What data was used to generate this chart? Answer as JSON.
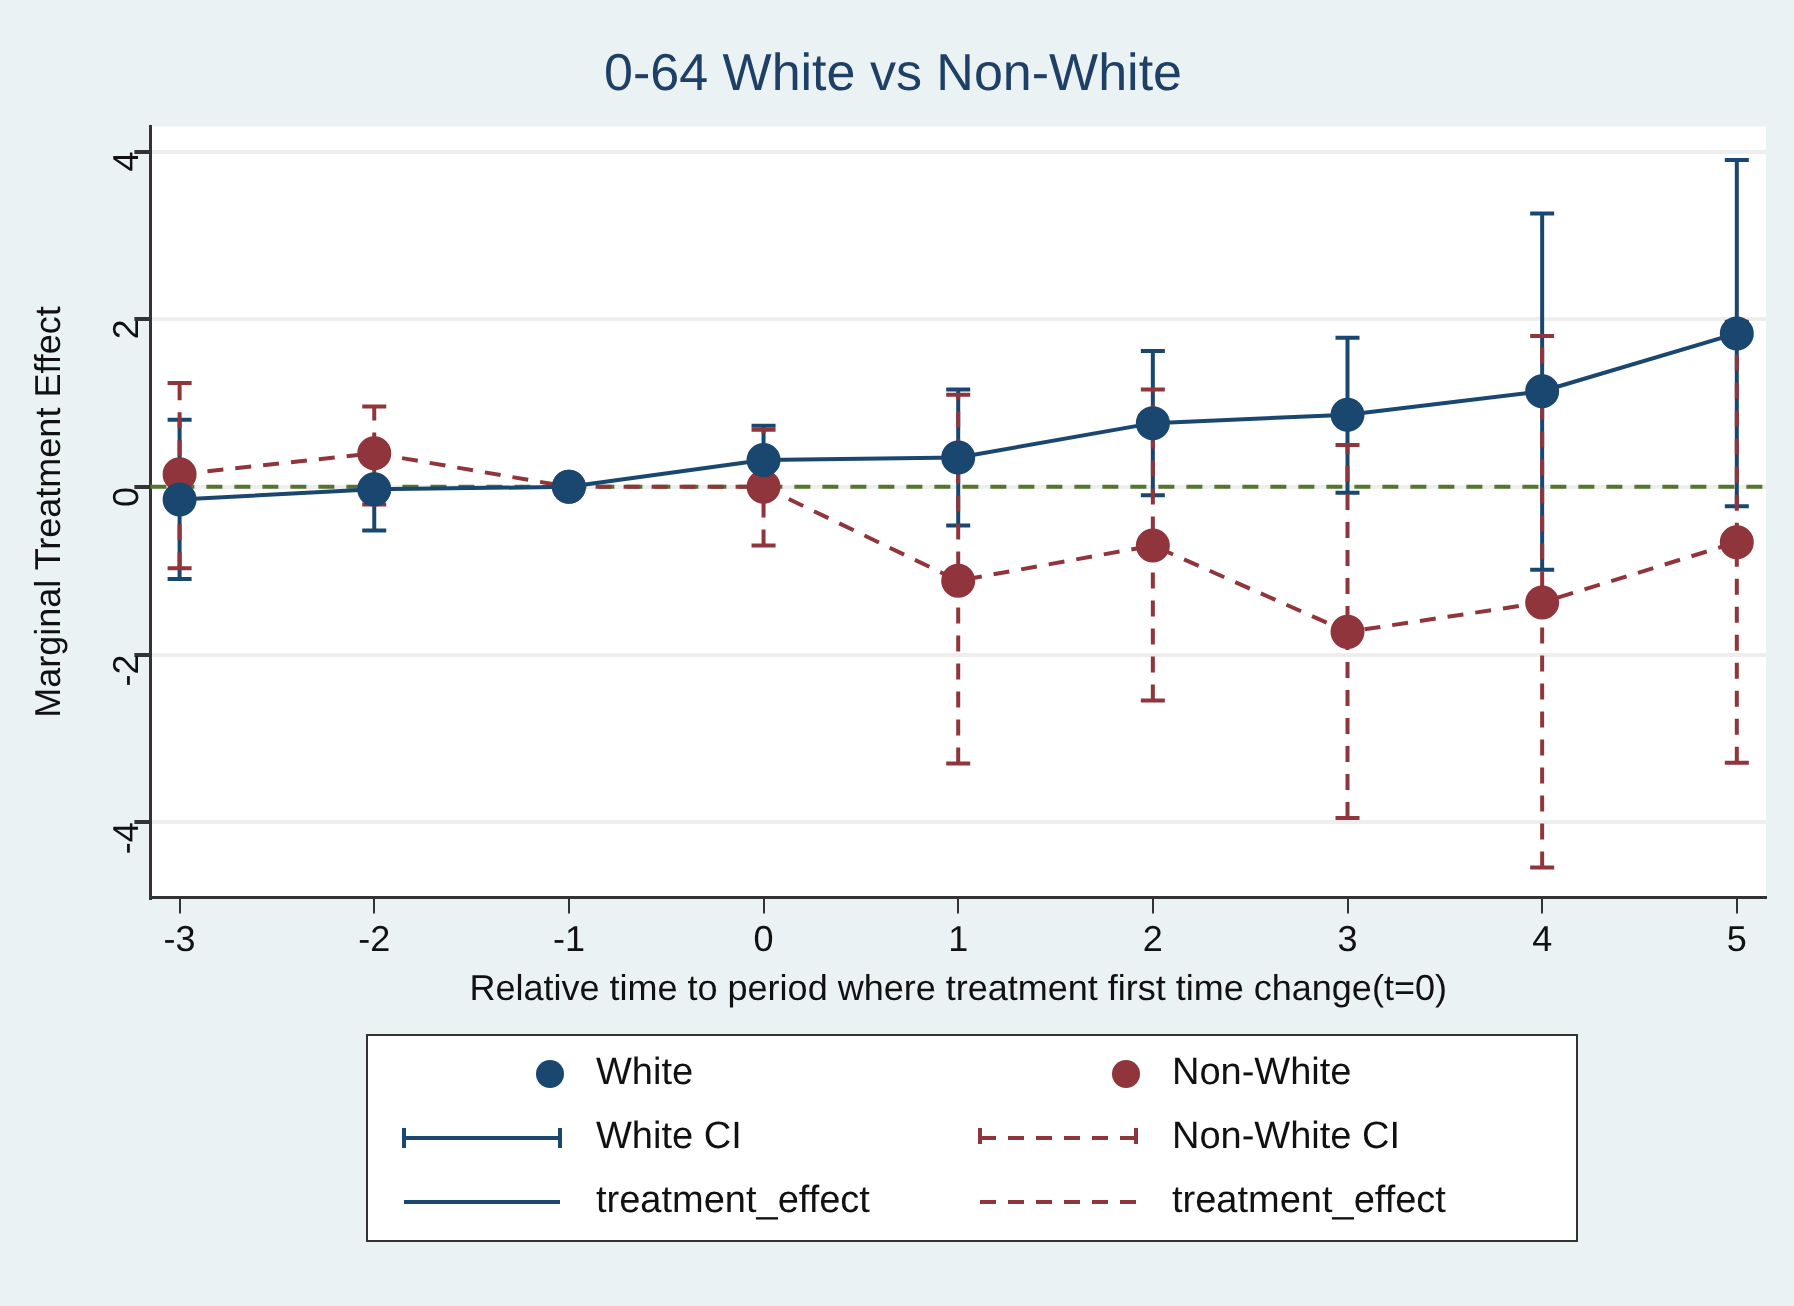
{
  "chart_data": {
    "type": "line",
    "title": "0-64 White vs Non-White",
    "xlabel": "Relative time to period where treatment first time change(t=0)",
    "ylabel": "Marginal Treatment Effect",
    "x": [
      -3,
      -2,
      -1,
      0,
      1,
      2,
      3,
      4,
      5
    ],
    "xlim": [
      -3.15,
      5.15
    ],
    "xticks": [
      -3,
      -2,
      -1,
      0,
      1,
      2,
      3,
      4,
      5
    ],
    "ylim": [
      -4.9,
      4.3
    ],
    "yticks": [
      -4,
      -2,
      0,
      2,
      4
    ],
    "grid": "y",
    "legend": "bottom",
    "annotations": [
      "White CI",
      "Non-White CI"
    ],
    "ref_lines": [
      {
        "axis": "y",
        "value": 0,
        "color": "#55752f",
        "line_style": "dashed"
      }
    ],
    "series": [
      {
        "name": "White",
        "type": "scatter",
        "marker": "circle",
        "line_style": "solid",
        "color": "#1a476f",
        "values": [
          -0.15,
          -0.03,
          0,
          0.32,
          0.35,
          0.76,
          0.86,
          1.14,
          1.83
        ],
        "errors": [
          [
            -1.1,
            0.8
          ],
          [
            -0.52,
            -0.03
          ],
          null,
          [
            0.32,
            0.73
          ],
          [
            -0.46,
            1.16
          ],
          [
            -0.1,
            1.62
          ],
          [
            -0.07,
            1.78
          ],
          [
            -0.99,
            3.26
          ],
          [
            -0.23,
            3.9
          ]
        ]
      },
      {
        "name": "Non-White",
        "type": "scatter",
        "marker": "circle",
        "line_style": "dashed",
        "color": "#90353b",
        "values": [
          0.15,
          0.4,
          0,
          0,
          -1.12,
          -0.7,
          -1.73,
          -1.38,
          -0.66
        ],
        "errors": [
          [
            -0.97,
            1.24
          ],
          [
            -0.21,
            0.96
          ],
          null,
          [
            -0.7,
            0.68
          ],
          [
            -3.3,
            1.1
          ],
          [
            -2.55,
            1.16
          ],
          [
            -3.95,
            0.5
          ],
          [
            -4.54,
            1.8
          ],
          [
            -3.29,
            1.97
          ]
        ]
      },
      {
        "name": "treatment_effect",
        "marker": "none",
        "line_style": "solid",
        "color": "#1a476f",
        "values": [
          -0.15,
          -0.03,
          0,
          0.32,
          0.35,
          0.76,
          0.86,
          1.14,
          1.83
        ]
      },
      {
        "name": "treatment_effect",
        "marker": "none",
        "line_style": "dashed",
        "color": "#90353b",
        "values": [
          0.15,
          0.4,
          0,
          0,
          -1.12,
          -0.7,
          -1.73,
          -1.38,
          -0.66
        ]
      }
    ]
  }
}
